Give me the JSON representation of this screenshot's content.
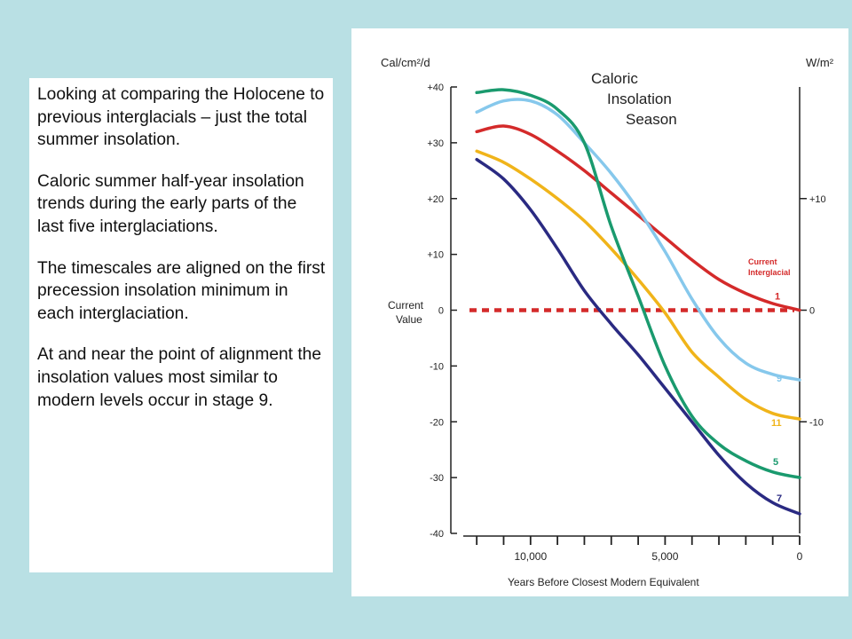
{
  "text_panel": {
    "paragraphs": [
      "Looking at comparing the Holocene to previous interglacials – just the total summer insolation.",
      "Caloric summer half-year insolation trends during the early parts of the last five interglaciations.",
      "The timescales are aligned on the first precession insolation minimum in each interglaciation.",
      "At and near the point of alignment the insolation values most similar to modern levels occur in stage 9."
    ]
  },
  "chart_data": {
    "type": "line",
    "title_lines": [
      "Caloric",
      "Insolation",
      "Season"
    ],
    "left_unit_label": "Cal/cm²/d",
    "right_unit_label": "W/m²",
    "ylabel_lines": [
      "Current",
      "Value"
    ],
    "xlabel": "Years Before Closest Modern Equivalent",
    "xlim": [
      12500,
      0
    ],
    "ylim": [
      -40,
      40
    ],
    "x_tick_labels": [
      {
        "value": 10000,
        "label": "10,000"
      },
      {
        "value": 5000,
        "label": "5,000"
      },
      {
        "value": 0,
        "label": "0"
      }
    ],
    "x_minor_ticks": [
      12000,
      11000,
      10000,
      9000,
      8000,
      7000,
      6000,
      5000,
      4000,
      3000,
      2000,
      1000,
      0
    ],
    "y_left_ticks": [
      {
        "value": 40,
        "label": "+40"
      },
      {
        "value": 30,
        "label": "+30"
      },
      {
        "value": 20,
        "label": "+20"
      },
      {
        "value": 10,
        "label": "+10"
      },
      {
        "value": 0,
        "label": "0"
      },
      {
        "value": -10,
        "label": "-10"
      },
      {
        "value": -20,
        "label": "-20"
      },
      {
        "value": -30,
        "label": "-30"
      },
      {
        "value": -40,
        "label": "-40"
      }
    ],
    "y_right_ticks": [
      {
        "value": 20,
        "label": "+10"
      },
      {
        "value": 0,
        "label": "0"
      },
      {
        "value": -20,
        "label": "-10"
      }
    ],
    "reference_line": {
      "label_lines": [
        "Current",
        "Interglacial"
      ],
      "value": 0,
      "color": "#d42a2a"
    },
    "series": [
      {
        "name": "1",
        "color": "#d42a2a",
        "x": [
          12000,
          11000,
          10000,
          9000,
          8000,
          7000,
          6000,
          5000,
          4000,
          3000,
          2000,
          1000,
          0
        ],
        "y": [
          32,
          33,
          31.5,
          28.5,
          25,
          21,
          17,
          13,
          9,
          5.5,
          3,
          1.2,
          0
        ]
      },
      {
        "name": "9",
        "color": "#86c8ec",
        "x": [
          12000,
          11000,
          10000,
          9000,
          8000,
          7000,
          6000,
          5000,
          4000,
          3000,
          2000,
          1000,
          0
        ],
        "y": [
          35.5,
          37.5,
          37.5,
          35,
          30,
          24.5,
          18,
          10.5,
          2,
          -5,
          -9.5,
          -11.5,
          -12.5
        ]
      },
      {
        "name": "11",
        "color": "#f0b41a",
        "x": [
          12000,
          11000,
          10000,
          9000,
          8000,
          7000,
          6000,
          5000,
          4000,
          3000,
          2000,
          1000,
          0
        ],
        "y": [
          28.5,
          26.5,
          23.5,
          20,
          16,
          11,
          5.5,
          -0.5,
          -7.5,
          -12,
          -16,
          -18.5,
          -19.5
        ]
      },
      {
        "name": "5",
        "color": "#1a9a6e",
        "x": [
          12000,
          11000,
          10000,
          9000,
          8000,
          7000,
          6000,
          5000,
          4000,
          3000,
          2000,
          1000,
          0
        ],
        "y": [
          39,
          39.5,
          38.5,
          36,
          30,
          15,
          2.5,
          -10,
          -19,
          -24,
          -27,
          -29,
          -30
        ]
      },
      {
        "name": "7",
        "color": "#2a2a82",
        "x": [
          12000,
          11000,
          10000,
          9000,
          8000,
          7000,
          6000,
          5000,
          4000,
          3000,
          2000,
          1000,
          0
        ],
        "y": [
          27,
          23.5,
          18,
          11,
          3.5,
          -2.5,
          -8,
          -14,
          -20,
          -26,
          -31,
          -34.5,
          -36.5
        ]
      }
    ],
    "grid": false
  }
}
